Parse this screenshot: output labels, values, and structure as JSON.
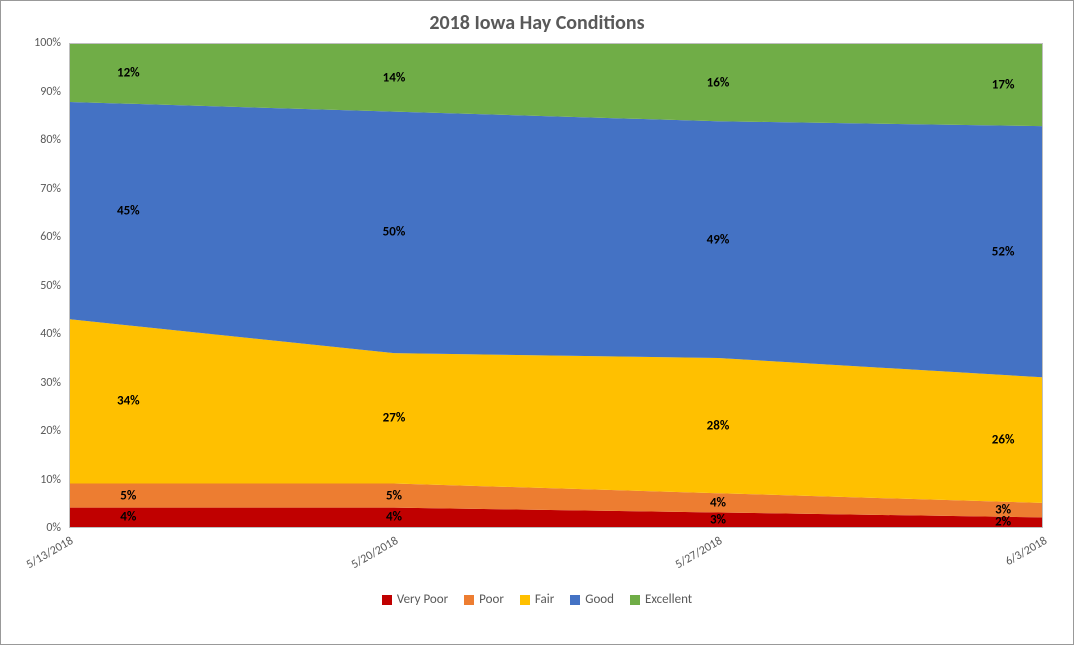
{
  "chart": {
    "type": "stacked-area-100",
    "title": "2018 Iowa Hay Conditions",
    "title_fontsize": 20,
    "title_color": "#595959",
    "background_color": "#ffffff",
    "border_color": "#999999",
    "plot_border_color": "#bfbfbf",
    "grid_color": "#d9d9d9",
    "categories": [
      "5/13/2018",
      "5/20/2018",
      "5/27/2018",
      "6/3/2018"
    ],
    "x_positions_pct": [
      0,
      33.3333,
      66.6667,
      100
    ],
    "y_axis": {
      "min": 0,
      "max": 100,
      "step": 10,
      "suffix": "%",
      "ticks": [
        "0%",
        "10%",
        "20%",
        "30%",
        "40%",
        "50%",
        "60%",
        "70%",
        "80%",
        "90%",
        "100%"
      ]
    },
    "series": [
      {
        "name": "Very Poor",
        "color": "#c00000",
        "values": [
          4,
          4,
          3,
          2
        ]
      },
      {
        "name": "Poor",
        "color": "#ed7d31",
        "values": [
          5,
          5,
          4,
          3
        ]
      },
      {
        "name": "Fair",
        "color": "#ffc000",
        "values": [
          34,
          27,
          28,
          26
        ]
      },
      {
        "name": "Good",
        "color": "#4472c4",
        "values": [
          45,
          50,
          49,
          52
        ]
      },
      {
        "name": "Excellent",
        "color": "#70ad47",
        "values": [
          12,
          14,
          16,
          17
        ]
      }
    ],
    "label_fontsize": 13,
    "label_color": "#000000",
    "axis_fontsize": 12,
    "axis_color": "#595959",
    "x_label_rotation_deg": -30,
    "legend": {
      "position": "bottom",
      "items": [
        "Very Poor",
        "Poor",
        "Fair",
        "Good",
        "Excellent"
      ]
    }
  }
}
